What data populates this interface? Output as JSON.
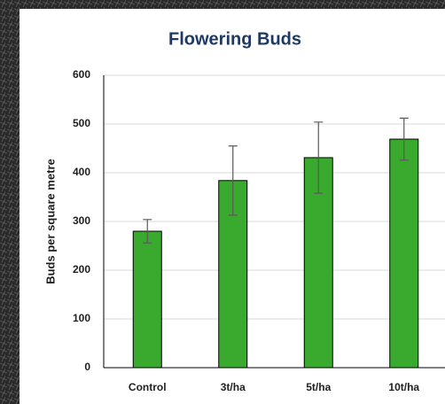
{
  "chart_data": {
    "type": "bar",
    "title": "Flowering Buds",
    "y_label": "Buds per square metre",
    "categories": [
      "Control",
      "3t/ha",
      "5t/ha",
      "10t/ha"
    ],
    "values": [
      280,
      384,
      431,
      469
    ],
    "errors": [
      24,
      71,
      73,
      43
    ],
    "color": "#3aaa2f",
    "ylim": [
      0,
      600
    ],
    "yticks": [
      0,
      100,
      200,
      300,
      400,
      500,
      600
    ],
    "grid": true
  }
}
